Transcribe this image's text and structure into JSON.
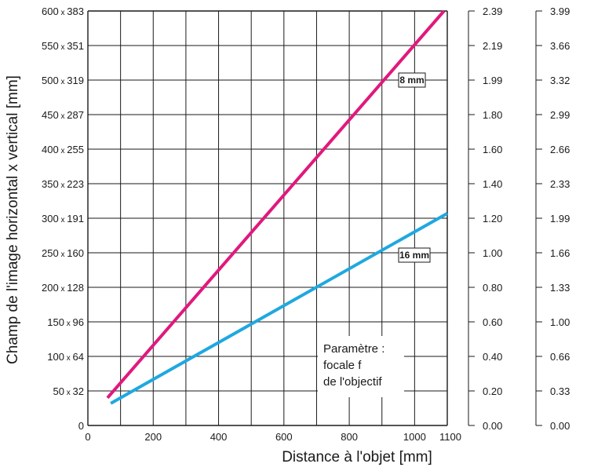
{
  "chart_data": {
    "type": "line",
    "xlabel": "Distance à l'objet [mm]",
    "ylabel": "Champ de l'image horizontal x vertical [mm]",
    "xlim": [
      0,
      1100
    ],
    "ylim": [
      0,
      600
    ],
    "grid": true,
    "x_ticks": [
      "0",
      "200",
      "400",
      "600",
      "800",
      "1000",
      "1100"
    ],
    "y_ticks": [
      {
        "value": 0,
        "h": "0",
        "v": ""
      },
      {
        "value": 50,
        "h": "50",
        "v": "32"
      },
      {
        "value": 100,
        "h": "100",
        "v": "64"
      },
      {
        "value": 150,
        "h": "150",
        "v": "96"
      },
      {
        "value": 200,
        "h": "200",
        "v": "128"
      },
      {
        "value": 250,
        "h": "250",
        "v": "160"
      },
      {
        "value": 300,
        "h": "300",
        "v": "191"
      },
      {
        "value": 350,
        "h": "350",
        "v": "223"
      },
      {
        "value": 400,
        "h": "400",
        "v": "255"
      },
      {
        "value": 450,
        "h": "450",
        "v": "287"
      },
      {
        "value": 500,
        "h": "500",
        "v": "319"
      },
      {
        "value": 550,
        "h": "550",
        "v": "351"
      },
      {
        "value": 600,
        "h": "600",
        "v": "383"
      }
    ],
    "secondary_axes": [
      {
        "ticks": [
          "0.00",
          "0.20",
          "0.40",
          "0.60",
          "0.80",
          "1.00",
          "1.20",
          "1.40",
          "1.60",
          "1.80",
          "1.99",
          "2.19",
          "2.39"
        ]
      },
      {
        "ticks": [
          "0.00",
          "0.33",
          "0.66",
          "1.00",
          "1.33",
          "1.66",
          "1.99",
          "2.33",
          "2.66",
          "2.99",
          "3.32",
          "3.66",
          "3.99"
        ]
      }
    ],
    "series": [
      {
        "name": "8 mm",
        "color": "#e0197d",
        "x": [
          60,
          1090
        ],
        "y": [
          40,
          600
        ]
      },
      {
        "name": "16 mm",
        "color": "#1fa8e0",
        "x": [
          70,
          1100
        ],
        "y": [
          32,
          307
        ]
      }
    ],
    "annotation": [
      "Paramètre :",
      "focale f",
      "de l'objectif"
    ]
  }
}
